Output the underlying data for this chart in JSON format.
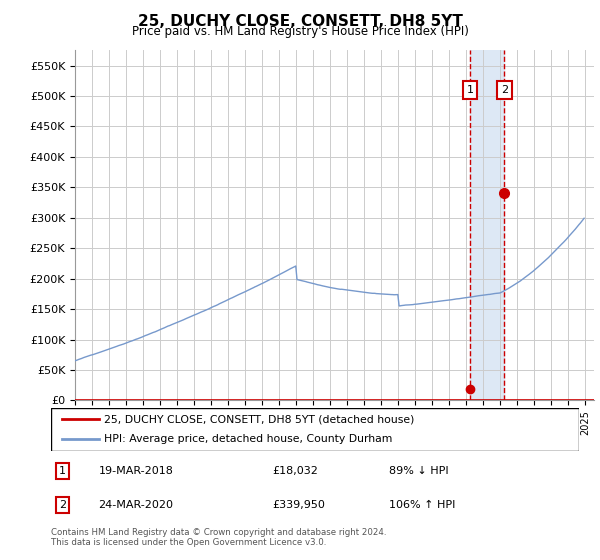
{
  "title": "25, DUCHY CLOSE, CONSETT, DH8 5YT",
  "subtitle": "Price paid vs. HM Land Registry's House Price Index (HPI)",
  "ylabel_ticks": [
    "£0",
    "£50K",
    "£100K",
    "£150K",
    "£200K",
    "£250K",
    "£300K",
    "£350K",
    "£400K",
    "£450K",
    "£500K",
    "£550K"
  ],
  "ytick_values": [
    0,
    50000,
    100000,
    150000,
    200000,
    250000,
    300000,
    350000,
    400000,
    450000,
    500000,
    550000
  ],
  "hpi_color": "#7799cc",
  "price_color": "#cc0000",
  "marker1_date": 2018.21,
  "marker1_price": 18032,
  "marker1_label": "19-MAR-2018",
  "marker1_amount": "£18,032",
  "marker1_pct": "89% ↓ HPI",
  "marker2_date": 2020.23,
  "marker2_price": 339950,
  "marker2_label": "24-MAR-2020",
  "marker2_amount": "£339,950",
  "marker2_pct": "106% ↑ HPI",
  "legend_line1": "25, DUCHY CLOSE, CONSETT, DH8 5YT (detached house)",
  "legend_line2": "HPI: Average price, detached house, County Durham",
  "footer": "Contains HM Land Registry data © Crown copyright and database right 2024.\nThis data is licensed under the Open Government Licence v3.0.",
  "background_color": "#ffffff",
  "grid_color": "#cccccc",
  "shade_color": "#dde8f5",
  "xmin": 1995,
  "xmax": 2025.5,
  "ymin": 0,
  "ymax": 575000
}
